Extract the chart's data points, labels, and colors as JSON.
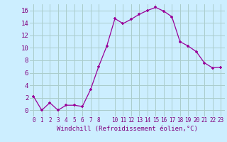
{
  "xlabel": "Windchill (Refroidissement éolien,°C)",
  "x_values": [
    0,
    1,
    2,
    3,
    4,
    5,
    6,
    7,
    8,
    9,
    10,
    11,
    12,
    13,
    14,
    15,
    16,
    17,
    18,
    19,
    20,
    21,
    22,
    23
  ],
  "y_values": [
    2.2,
    0.0,
    1.2,
    0.0,
    0.8,
    0.8,
    0.6,
    3.3,
    7.0,
    10.3,
    14.7,
    13.9,
    14.6,
    15.4,
    16.0,
    16.5,
    15.9,
    15.0,
    11.0,
    10.3,
    9.4,
    7.6,
    6.8,
    6.9
  ],
  "line_color": "#990099",
  "marker_color": "#990099",
  "bg_color": "#cceeff",
  "grid_color": "#aacccc",
  "tick_label_color": "#800080",
  "axis_label_color": "#800080",
  "ylim": [
    -1,
    17
  ],
  "xlim": [
    -0.5,
    23.5
  ],
  "yticks": [
    0,
    2,
    4,
    6,
    8,
    10,
    12,
    14,
    16
  ],
  "xticks": [
    0,
    1,
    2,
    3,
    4,
    5,
    6,
    7,
    8,
    10,
    11,
    12,
    13,
    14,
    15,
    16,
    17,
    18,
    19,
    20,
    21,
    22,
    23
  ],
  "xlabel_fontsize": 6.5,
  "ytick_fontsize": 6.5,
  "xtick_fontsize": 5.5
}
